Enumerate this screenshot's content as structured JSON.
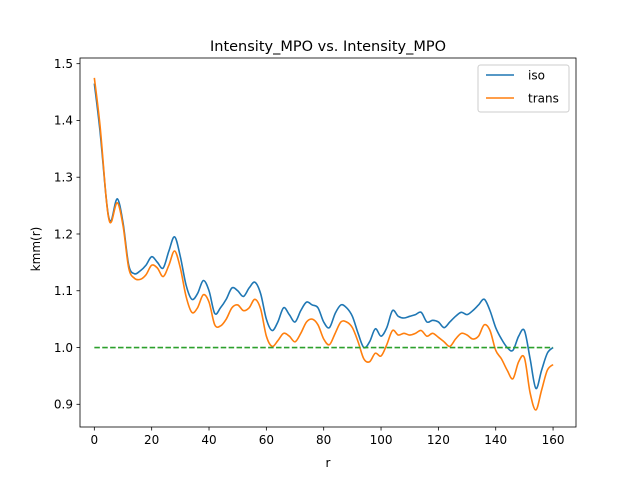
{
  "chart_data": {
    "type": "line",
    "title": "Intensity_MPO vs. Intensity_MPO",
    "xlabel": "r",
    "ylabel": "kmm(r)",
    "xlim": [
      -5,
      168
    ],
    "ylim": [
      0.86,
      1.51
    ],
    "xticks": [
      0,
      20,
      40,
      60,
      80,
      100,
      120,
      140,
      160
    ],
    "yticks": [
      0.9,
      1.0,
      1.1,
      1.2,
      1.3,
      1.4,
      1.5
    ],
    "xtick_labels": [
      "0",
      "20",
      "40",
      "60",
      "80",
      "100",
      "120",
      "140",
      "160"
    ],
    "ytick_labels": [
      "0.9",
      "1.0",
      "1.1",
      "1.2",
      "1.3",
      "1.4",
      "1.5"
    ],
    "grid": false,
    "legend_position": "top-right",
    "series": [
      {
        "name": "iso",
        "color": "#1f77b4",
        "style": "solid",
        "x": [
          0,
          2,
          4,
          5,
          6,
          8,
          10,
          12,
          14,
          16,
          18,
          20,
          22,
          24,
          26,
          28,
          30,
          32,
          34,
          36,
          38,
          40,
          42,
          44,
          46,
          48,
          50,
          52,
          54,
          56,
          58,
          60,
          62,
          64,
          66,
          68,
          70,
          72,
          74,
          76,
          78,
          80,
          82,
          84,
          86,
          88,
          90,
          92,
          94,
          96,
          98,
          100,
          102,
          104,
          106,
          108,
          110,
          112,
          114,
          116,
          118,
          120,
          122,
          124,
          126,
          128,
          130,
          132,
          134,
          136,
          138,
          140,
          142,
          144,
          146,
          148,
          150,
          152,
          154,
          156,
          158,
          160
        ],
        "y": [
          1.465,
          1.38,
          1.27,
          1.23,
          1.225,
          1.262,
          1.22,
          1.145,
          1.13,
          1.135,
          1.145,
          1.16,
          1.15,
          1.14,
          1.17,
          1.195,
          1.16,
          1.11,
          1.085,
          1.095,
          1.118,
          1.1,
          1.06,
          1.07,
          1.085,
          1.105,
          1.1,
          1.09,
          1.105,
          1.115,
          1.095,
          1.05,
          1.03,
          1.045,
          1.07,
          1.058,
          1.045,
          1.065,
          1.08,
          1.075,
          1.07,
          1.045,
          1.035,
          1.06,
          1.075,
          1.07,
          1.055,
          1.025,
          1.0,
          1.01,
          1.033,
          1.02,
          1.035,
          1.065,
          1.055,
          1.052,
          1.055,
          1.058,
          1.062,
          1.045,
          1.048,
          1.045,
          1.035,
          1.045,
          1.055,
          1.062,
          1.058,
          1.065,
          1.075,
          1.085,
          1.065,
          1.035,
          1.015,
          1.0,
          0.995,
          1.02,
          1.03,
          0.98,
          0.928,
          0.96,
          0.99,
          1.0
        ]
      },
      {
        "name": "trans",
        "color": "#ff7f0e",
        "style": "solid",
        "x": [
          0,
          2,
          4,
          5,
          6,
          8,
          10,
          12,
          14,
          16,
          18,
          20,
          22,
          24,
          26,
          28,
          30,
          32,
          34,
          36,
          38,
          40,
          42,
          44,
          46,
          48,
          50,
          52,
          54,
          56,
          58,
          60,
          62,
          64,
          66,
          68,
          70,
          72,
          74,
          76,
          78,
          80,
          82,
          84,
          86,
          88,
          90,
          92,
          94,
          96,
          98,
          100,
          102,
          104,
          106,
          108,
          110,
          112,
          114,
          116,
          118,
          120,
          122,
          124,
          126,
          128,
          130,
          132,
          134,
          136,
          138,
          140,
          142,
          144,
          146,
          148,
          150,
          152,
          154,
          156,
          158,
          160
        ],
        "y": [
          1.475,
          1.39,
          1.27,
          1.228,
          1.222,
          1.255,
          1.215,
          1.14,
          1.122,
          1.12,
          1.128,
          1.145,
          1.14,
          1.125,
          1.145,
          1.17,
          1.14,
          1.09,
          1.062,
          1.07,
          1.093,
          1.08,
          1.04,
          1.038,
          1.05,
          1.07,
          1.075,
          1.065,
          1.07,
          1.085,
          1.068,
          1.02,
          1.002,
          1.012,
          1.025,
          1.02,
          1.01,
          1.025,
          1.045,
          1.05,
          1.04,
          1.015,
          1.005,
          1.025,
          1.045,
          1.045,
          1.035,
          1.01,
          0.98,
          0.975,
          0.99,
          0.985,
          1.005,
          1.03,
          1.022,
          1.025,
          1.022,
          1.025,
          1.03,
          1.02,
          1.025,
          1.018,
          1.01,
          1.002,
          1.015,
          1.025,
          1.022,
          1.015,
          1.02,
          1.04,
          1.03,
          0.995,
          0.98,
          0.96,
          0.945,
          0.975,
          0.982,
          0.92,
          0.89,
          0.925,
          0.96,
          0.97
        ]
      },
      {
        "name": "",
        "color": "#2ca02c",
        "style": "dashed",
        "x": [
          0,
          160
        ],
        "y": [
          1.0,
          1.0
        ]
      }
    ],
    "legend": [
      {
        "label": "iso",
        "color": "#1f77b4"
      },
      {
        "label": "trans",
        "color": "#ff7f0e"
      }
    ]
  }
}
